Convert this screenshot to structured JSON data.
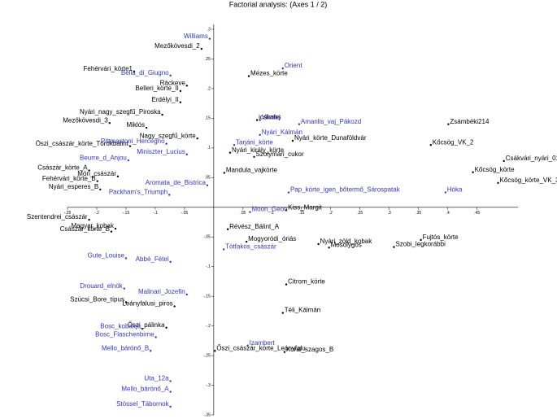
{
  "chart_data": {
    "type": "scatter",
    "title": "Factorial analysis: (Axes 1 / 2)",
    "xlim": [
      -0.25,
      0.52
    ],
    "ylim": [
      -0.35,
      0.3
    ],
    "xticks": [
      {
        "value": -0.25,
        "label": "-.25"
      },
      {
        "value": -0.2,
        "label": "-.2"
      },
      {
        "value": -0.15,
        "label": "-.15"
      },
      {
        "value": -0.1,
        "label": "-.1"
      },
      {
        "value": -0.05,
        "label": "-.05"
      },
      {
        "value": 0.05,
        "label": ".05"
      },
      {
        "value": 0.1,
        "label": ".1"
      },
      {
        "value": 0.15,
        "label": ".15"
      },
      {
        "value": 0.2,
        "label": ".2"
      },
      {
        "value": 0.25,
        "label": ".25"
      },
      {
        "value": 0.3,
        "label": ".3"
      },
      {
        "value": 0.35,
        "label": ".35"
      },
      {
        "value": 0.4,
        "label": ".4"
      },
      {
        "value": 0.45,
        "label": ".45"
      }
    ],
    "yticks": [
      {
        "value": 0.3,
        "label": ".3"
      },
      {
        "value": 0.25,
        "label": ".25"
      },
      {
        "value": 0.2,
        "label": ".2"
      },
      {
        "value": 0.15,
        "label": ".15"
      },
      {
        "value": 0.1,
        "label": ".1"
      },
      {
        "value": 0.05,
        "label": ".05"
      },
      {
        "value": -0.05,
        "label": "-.05"
      },
      {
        "value": -0.1,
        "label": "-.1"
      },
      {
        "value": -0.15,
        "label": "-.15"
      },
      {
        "value": -0.2,
        "label": "-.2"
      },
      {
        "value": -0.25,
        "label": "-.25"
      },
      {
        "value": -0.3,
        "label": "-.3"
      },
      {
        "value": -0.35,
        "label": "-.35"
      }
    ],
    "series": [
      {
        "color": "#000000",
        "labels": [
          "Mezőkövesdi_2",
          "Fehérvári_körte1",
          "Ráckeve",
          "Belleri_körte_II",
          "Erdélyi_II",
          "Mézes_körte",
          "Nyári_nagy_szegfű_Piroska",
          "Mezőkövesdi_3",
          "Miklós",
          "Nagy_szegfű_körte",
          "Öszi_császár_körte_Törökbálint",
          "Császár_körte_A",
          "Móri_császár",
          "Fehérvári_körte_B",
          "Nyári_esperes_B",
          "Mandula_vajkörte",
          "Nyári_király_körte",
          "Szolymári_cukor",
          "Nyári_körte_Dunaföldvár",
          "icskafej",
          "Zsámbéki214",
          "Kőcsög_VK_2",
          "Csákvári_nyári_010",
          "Kőcsög_körte",
          "Kőcsög_körte_VK_3",
          "Kiss_Margit",
          "Szentendrei_császár",
          "Császár_körte_B",
          "Magyar_kobak",
          "Révész_Bálint_A",
          "Mogyoródi_óriás",
          "Nyári_zöld_kobak",
          "Mosolygós",
          "Fujtós_körte",
          "Szobi_legkorábbi",
          "Citrom_körte",
          "Szücsi_Bore_típus",
          "Leányfalusi_piros",
          "Téli_Kálmán",
          "Őszi_pálinka",
          "Őszi_császár_körte_Leányfalu",
          "Koral_szagos_B"
        ],
        "x": [
          -0.021,
          -0.136,
          -0.046,
          -0.057,
          -0.057,
          0.06,
          -0.088,
          -0.178,
          -0.115,
          -0.028,
          -0.143,
          -0.213,
          -0.164,
          -0.199,
          -0.194,
          0.018,
          0.028,
          0.069,
          0.135,
          0.074,
          0.401,
          0.371,
          0.496,
          0.443,
          0.486,
          0.124,
          -0.213,
          -0.175,
          -0.168,
          0.024,
          0.056,
          0.179,
          0.197,
          0.354,
          0.308,
          0.124,
          -0.15,
          -0.067,
          0.118,
          -0.081,
          0.002,
          0.121
        ],
        "y": [
          0.267,
          0.229,
          0.205,
          0.196,
          0.177,
          0.221,
          0.156,
          0.142,
          0.134,
          0.116,
          0.103,
          0.062,
          0.052,
          0.044,
          0.03,
          0.058,
          0.092,
          0.085,
          0.112,
          0.147,
          0.14,
          0.105,
          0.078,
          0.059,
          0.041,
          -0.005,
          -0.021,
          -0.041,
          -0.036,
          -0.037,
          -0.058,
          -0.062,
          -0.068,
          -0.055,
          -0.067,
          -0.13,
          -0.16,
          -0.167,
          -0.178,
          -0.203,
          -0.242,
          -0.244
        ]
      },
      {
        "color": "#3333cc",
        "labels": [
          "Williams",
          "Orient",
          "Bella_di_Giugno",
          "Vilmos",
          "Amanlis_vaj_Pákozd",
          "Nyári_Kálmán",
          "Tarjáni_körte",
          "Pittmastoni_Hercegnö",
          "Miniszter_Lucius",
          "Beurre_d_Anjou",
          "Aromata_de_Bistrica",
          "Packham's_Triumph",
          "Pap_körte_igen_bőtermő_Sárospatak",
          "Hóka",
          "Moon_Geon",
          "Tótfakos_császár",
          "Gute_Louise",
          "Abbé_Fétel",
          "Drouard_elnök",
          "Malinari_Jozefin",
          "Bosc_kobakja",
          "Bosc_Flaschenbirne",
          "Mello_bárónő_B",
          "Izambert",
          "Uta_12a",
          "Mello_bárónő_A",
          "Stössel_Tábornok"
        ],
        "x": [
          -0.007,
          0.118,
          -0.074,
          0.079,
          0.146,
          0.079,
          0.035,
          -0.081,
          -0.046,
          -0.146,
          -0.011,
          -0.076,
          0.128,
          0.396,
          0.062,
          0.017,
          -0.15,
          -0.074,
          -0.153,
          -0.046,
          -0.122,
          -0.099,
          -0.108,
          0.058,
          -0.074,
          -0.074,
          -0.074
        ],
        "y": [
          0.284,
          0.234,
          0.222,
          0.147,
          0.14,
          0.122,
          0.105,
          0.107,
          0.089,
          0.079,
          0.037,
          0.021,
          0.025,
          0.025,
          -0.008,
          -0.071,
          -0.086,
          -0.092,
          -0.137,
          -0.147,
          -0.205,
          -0.219,
          -0.242,
          -0.233,
          -0.293,
          -0.311,
          -0.336
        ]
      }
    ]
  }
}
